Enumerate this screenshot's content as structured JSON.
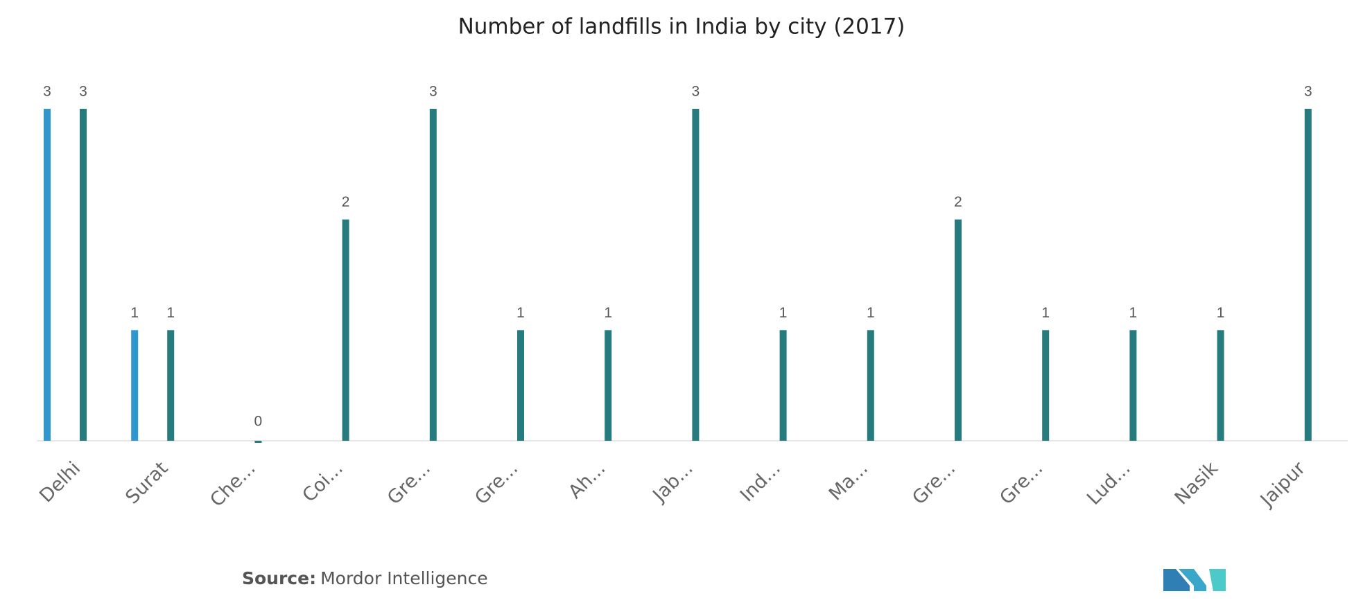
{
  "chart_data": {
    "type": "bar",
    "title": "Number of landfills in India by city (2017)",
    "categories": [
      "Delhi",
      "Surat",
      "Che...",
      "Coi...",
      "Gre...",
      "Gre...",
      "Ah...",
      "Jab...",
      "Ind...",
      "Ma...",
      "Gre...",
      "Gre...",
      "Lud...",
      "Nasik",
      "Jaipur"
    ],
    "series": [
      {
        "color": "#2f96d0",
        "values": [
          3,
          1,
          null,
          null,
          null,
          null,
          null,
          null,
          null,
          null,
          null,
          null,
          null,
          null,
          null
        ]
      },
      {
        "color": "#267b7e",
        "values": [
          3,
          1,
          0,
          2,
          3,
          1,
          1,
          3,
          1,
          1,
          2,
          1,
          1,
          1,
          3
        ]
      }
    ],
    "ylim": [
      0,
      3
    ],
    "grid": false
  },
  "footer": {
    "source_label": "Source:",
    "source": "Mordor Intelligence"
  }
}
